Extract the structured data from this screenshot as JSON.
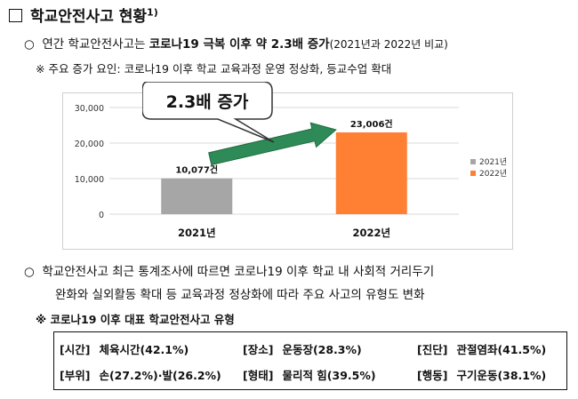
{
  "title": {
    "text": "학교안전사고 현황",
    "footnote": "1)"
  },
  "para1": {
    "bullet": "○",
    "prefix": "연간 학교안전사고는 ",
    "bold": "코로나19 극복 이후 약 2.3배 증가",
    "suffix": "(2021년과 2022년 비교)"
  },
  "note1": "※ 주요 증가 요인: 코로나19 이후 학교 교육과정 운영 정상화, 등교수업 확대",
  "callout": {
    "text": "2.3배 증가"
  },
  "chart_data": {
    "type": "bar",
    "categories": [
      "2021년",
      "2022년"
    ],
    "values": [
      10077,
      23006
    ],
    "data_labels": [
      "10,077건",
      "23,006건"
    ],
    "colors": [
      "#a6a6a6",
      "#ff8033"
    ],
    "legend": [
      "2021년",
      "2022년"
    ],
    "legend_position": "right",
    "ylim": [
      0,
      30000
    ],
    "yticks": [
      0,
      10000,
      20000,
      30000
    ],
    "ytick_labels": [
      "0",
      "10,000",
      "20,000",
      "30,000"
    ],
    "grid": true,
    "arrow_color": "#2e8b57"
  },
  "para2": {
    "bullet": "○",
    "line1": "학교안전사고 최근 통계조사에 따르면 코로나19 이후 학교 내 사회적 거리두기",
    "line2": "완화와 실외활동 확대 등 교육과정 정상화에 따라 주요 사고의 유형도 변화"
  },
  "note2": "※ 코로나19 이후 대표 학교안전사고 유형",
  "types": [
    {
      "tag": "[시간]",
      "value": "체육시간(42.1%)"
    },
    {
      "tag": "[장소]",
      "value": "운동장(28.3%)"
    },
    {
      "tag": "[진단]",
      "value": "관절염좌(41.5%)"
    },
    {
      "tag": "[부위]",
      "value": "손(27.2%)·발(26.2%)"
    },
    {
      "tag": "[형태]",
      "value": "물리적 힘(39.5%)"
    },
    {
      "tag": "[행동]",
      "value": "구기운동(38.1%)"
    }
  ]
}
